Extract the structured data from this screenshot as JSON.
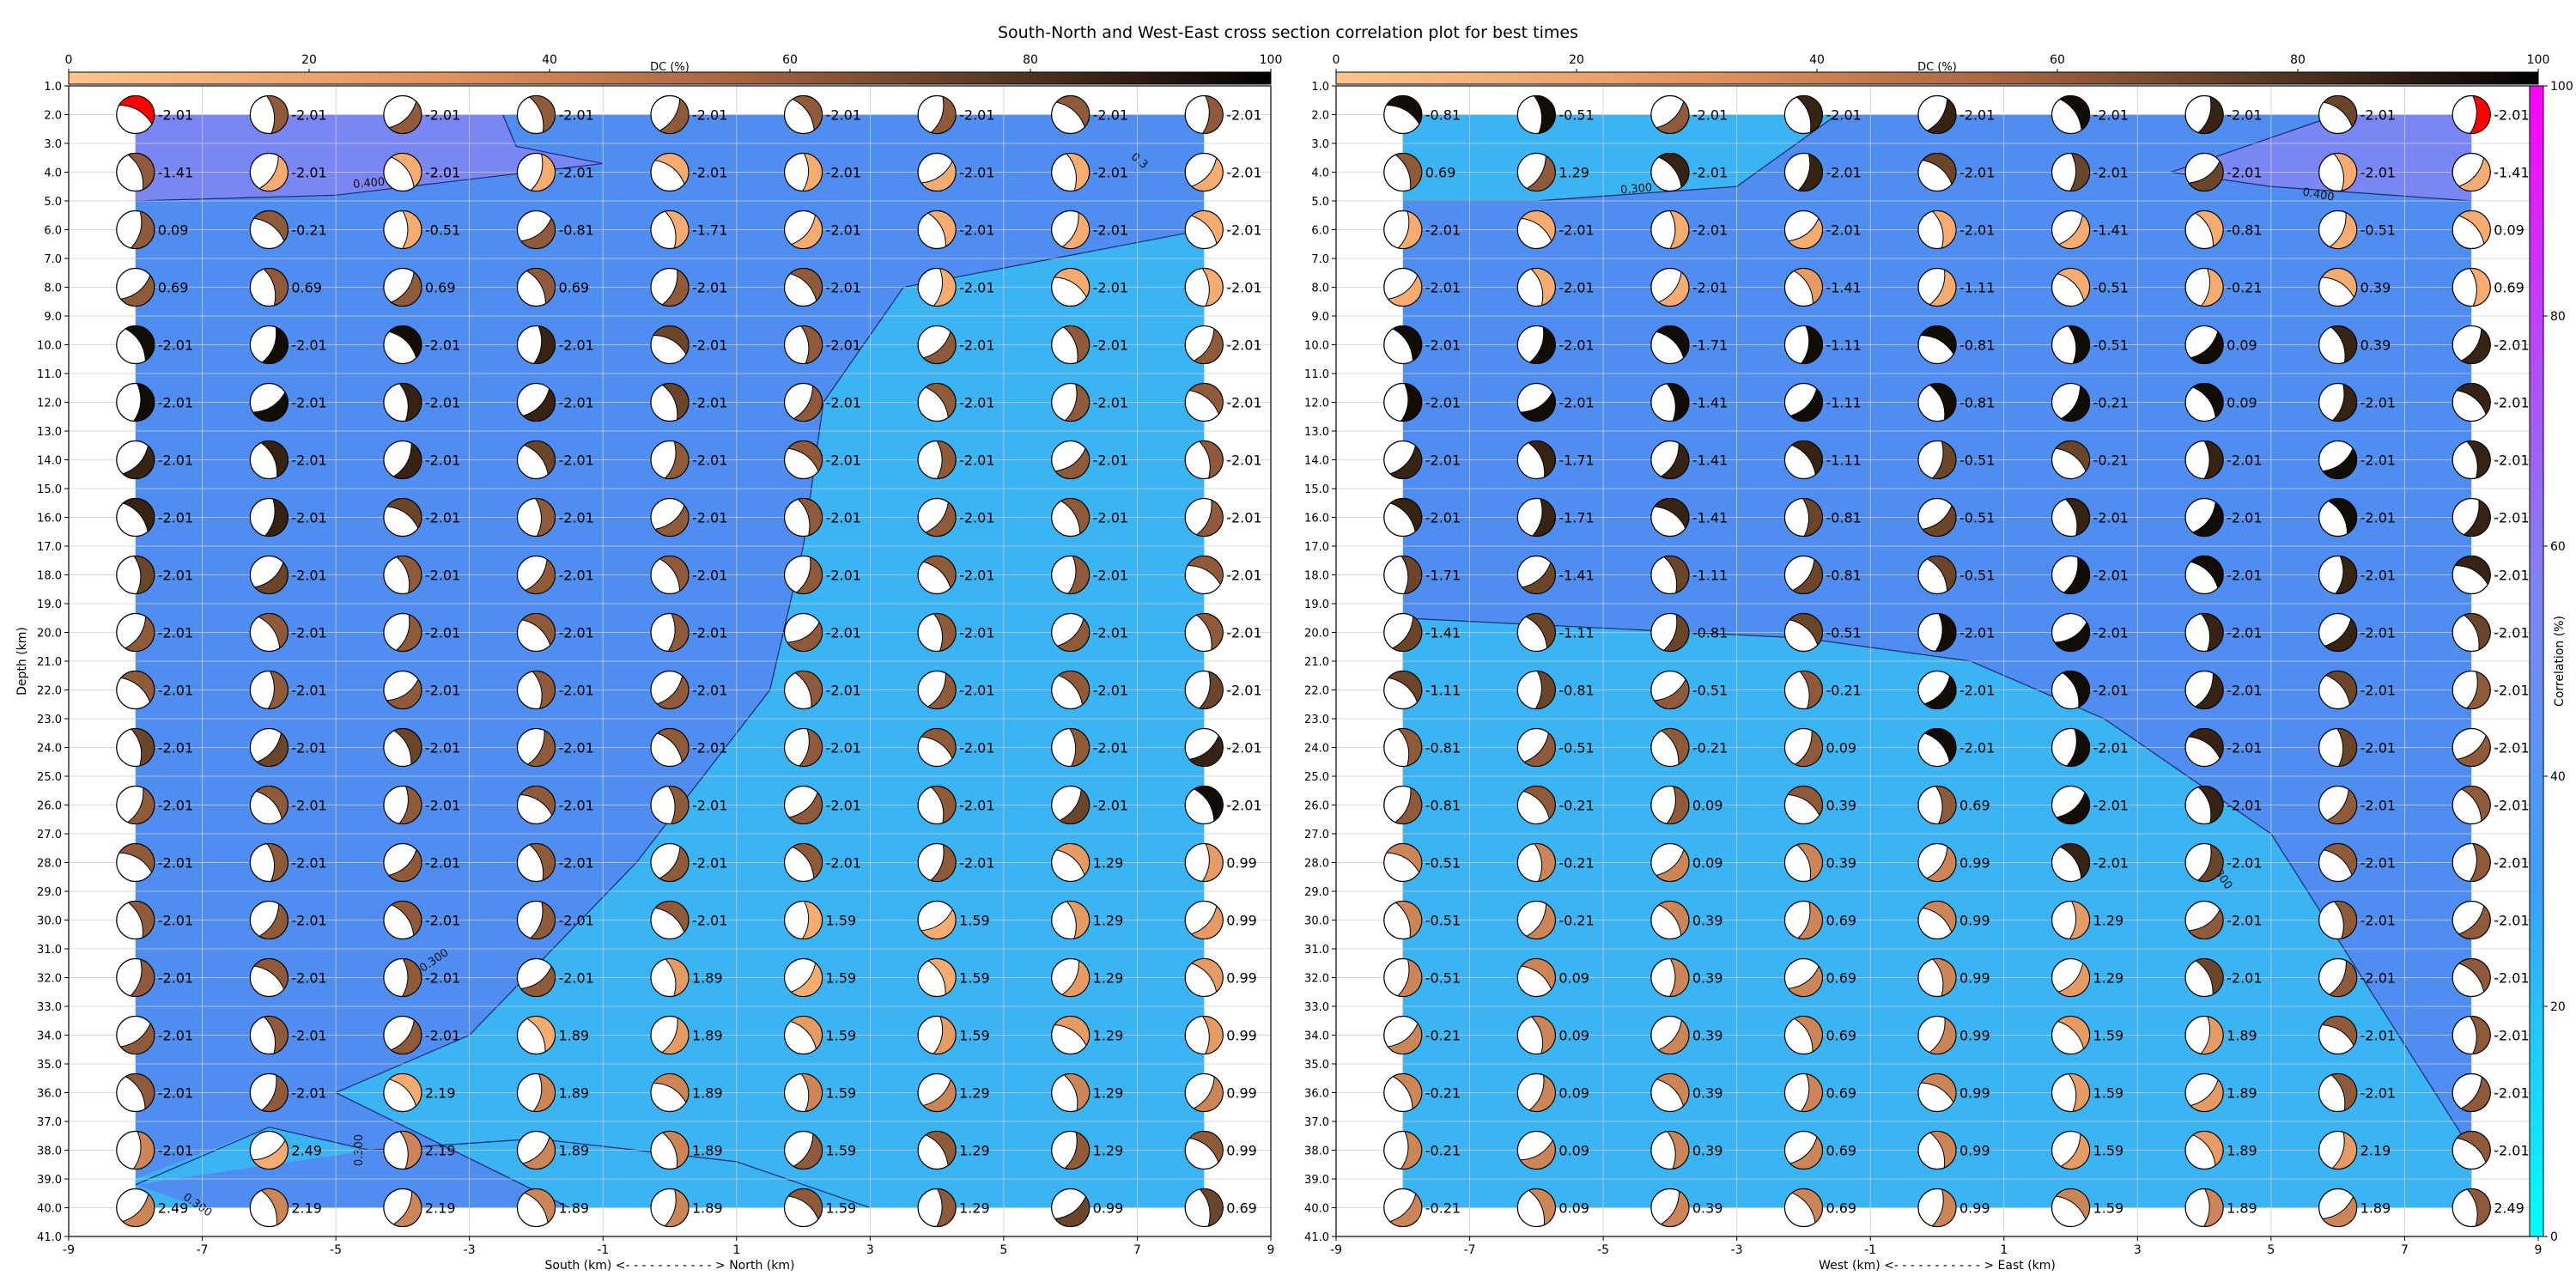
{
  "figure": {
    "title": "South-North and West-East cross section correlation plot for best times"
  },
  "colorbars": {
    "dc": {
      "label": "DC (%)",
      "ticks": [
        "0",
        "20",
        "40",
        "60",
        "80",
        "100"
      ],
      "colors": [
        "#fcc58d",
        "#f4a46a",
        "#b0704a",
        "#5a3a22",
        "#000000"
      ]
    },
    "correlation": {
      "label": "Correlation (%)",
      "ticks": [
        "0",
        "20",
        "40",
        "60",
        "80",
        "100"
      ],
      "colors": [
        "#00ffff",
        "#3aa0ff",
        "#8080ff",
        "#c040ff",
        "#ff00ff"
      ]
    }
  },
  "colors": {
    "region_low": "#3ab4f2",
    "region_mid": "#4f8ef0",
    "region_high": "#7b86f5",
    "contour": "#1b2a6e",
    "beachball_best": "#ff0000",
    "grid": "#cccccc"
  },
  "chart_data": [
    {
      "type": "scatter",
      "panel": "South-North",
      "xlabel": "South (km) <- - - - - - - - - - - > North (km)",
      "ylabel": "Depth (km)",
      "xlim": [
        -9,
        9
      ],
      "ylim": [
        41,
        1
      ],
      "x_ticks": [
        "-9",
        "-7",
        "-5",
        "-3",
        "-1",
        "1",
        "3",
        "5",
        "7",
        "9"
      ],
      "y_ticks": [
        "1.0",
        "2.0",
        "3.0",
        "4.0",
        "5.0",
        "6.0",
        "7.0",
        "8.0",
        "9.0",
        "10.0",
        "11.0",
        "12.0",
        "13.0",
        "14.0",
        "15.0",
        "16.0",
        "17.0",
        "18.0",
        "19.0",
        "20.0",
        "21.0",
        "22.0",
        "23.0",
        "24.0",
        "25.0",
        "26.0",
        "27.0",
        "28.0",
        "29.0",
        "30.0",
        "31.0",
        "32.0",
        "33.0",
        "34.0",
        "35.0",
        "36.0",
        "37.0",
        "38.0",
        "39.0",
        "40.0",
        "41.0"
      ],
      "x": [
        -8,
        -6,
        -4,
        -2,
        0,
        2,
        4,
        6,
        8
      ],
      "depths": [
        2,
        4,
        6,
        8,
        10,
        12,
        14,
        16,
        18,
        20,
        22,
        24,
        26,
        28,
        30,
        32,
        34,
        36,
        38,
        40
      ],
      "labels": [
        [
          "-2.01",
          "-2.01",
          "-2.01",
          "-2.01",
          "-2.01",
          "-2.01",
          "-2.01",
          "-2.01",
          "-2.01"
        ],
        [
          "-1.41",
          "-2.01",
          "-2.01",
          "-2.01",
          "-2.01",
          "-2.01",
          "-2.01",
          "-2.01",
          "-2.01"
        ],
        [
          "0.09",
          "-0.21",
          "-0.51",
          "-0.81",
          "-1.71",
          "-2.01",
          "-2.01",
          "-2.01",
          "-2.01"
        ],
        [
          "0.69",
          "0.69",
          "0.69",
          "0.69",
          "-2.01",
          "-2.01",
          "-2.01",
          "-2.01",
          "-2.01"
        ],
        [
          "-2.01",
          "-2.01",
          "-2.01",
          "-2.01",
          "-2.01",
          "-2.01",
          "-2.01",
          "-2.01",
          "-2.01"
        ],
        [
          "-2.01",
          "-2.01",
          "-2.01",
          "-2.01",
          "-2.01",
          "-2.01",
          "-2.01",
          "-2.01",
          "-2.01"
        ],
        [
          "-2.01",
          "-2.01",
          "-2.01",
          "-2.01",
          "-2.01",
          "-2.01",
          "-2.01",
          "-2.01",
          "-2.01"
        ],
        [
          "-2.01",
          "-2.01",
          "-2.01",
          "-2.01",
          "-2.01",
          "-2.01",
          "-2.01",
          "-2.01",
          "-2.01"
        ],
        [
          "-2.01",
          "-2.01",
          "-2.01",
          "-2.01",
          "-2.01",
          "-2.01",
          "-2.01",
          "-2.01",
          "-2.01"
        ],
        [
          "-2.01",
          "-2.01",
          "-2.01",
          "-2.01",
          "-2.01",
          "-2.01",
          "-2.01",
          "-2.01",
          "-2.01"
        ],
        [
          "-2.01",
          "-2.01",
          "-2.01",
          "-2.01",
          "-2.01",
          "-2.01",
          "-2.01",
          "-2.01",
          "-2.01"
        ],
        [
          "-2.01",
          "-2.01",
          "-2.01",
          "-2.01",
          "-2.01",
          "-2.01",
          "-2.01",
          "-2.01",
          "-2.01"
        ],
        [
          "-2.01",
          "-2.01",
          "-2.01",
          "-2.01",
          "-2.01",
          "-2.01",
          "-2.01",
          "-2.01",
          "-2.01"
        ],
        [
          "-2.01",
          "-2.01",
          "-2.01",
          "-2.01",
          "-2.01",
          "-2.01",
          "-2.01",
          "1.29",
          "0.99"
        ],
        [
          "-2.01",
          "-2.01",
          "-2.01",
          "-2.01",
          "-2.01",
          "1.59",
          "1.59",
          "1.29",
          "0.99"
        ],
        [
          "-2.01",
          "-2.01",
          "-2.01",
          "-2.01",
          "1.89",
          "1.59",
          "1.59",
          "1.29",
          "0.99"
        ],
        [
          "-2.01",
          "-2.01",
          "-2.01",
          "1.89",
          "1.89",
          "1.59",
          "1.59",
          "1.29",
          "0.99"
        ],
        [
          "-2.01",
          "-2.01",
          "2.19",
          "1.89",
          "1.89",
          "1.59",
          "1.29",
          "1.29",
          "0.99"
        ],
        [
          "-2.01",
          "2.49",
          "2.19",
          "1.89",
          "1.89",
          "1.59",
          "1.29",
          "1.29",
          "0.99"
        ],
        [
          "2.49",
          "2.19",
          "2.19",
          "1.89",
          "1.89",
          "1.59",
          "1.29",
          "0.99",
          "0.69"
        ]
      ],
      "dc_percent": [
        [
          60,
          60,
          60,
          60,
          60,
          60,
          60,
          60,
          60
        ],
        [
          60,
          20,
          20,
          20,
          20,
          20,
          20,
          20,
          20
        ],
        [
          60,
          60,
          20,
          60,
          20,
          20,
          20,
          20,
          20
        ],
        [
          60,
          60,
          60,
          60,
          60,
          60,
          20,
          20,
          20
        ],
        [
          95,
          95,
          95,
          85,
          70,
          60,
          60,
          60,
          60
        ],
        [
          95,
          95,
          85,
          85,
          70,
          60,
          60,
          60,
          60
        ],
        [
          85,
          85,
          85,
          70,
          60,
          60,
          60,
          60,
          60
        ],
        [
          85,
          85,
          70,
          60,
          60,
          60,
          60,
          60,
          60
        ],
        [
          70,
          70,
          60,
          60,
          60,
          60,
          60,
          60,
          60
        ],
        [
          60,
          60,
          60,
          60,
          60,
          60,
          60,
          60,
          60
        ],
        [
          60,
          60,
          60,
          60,
          60,
          60,
          60,
          60,
          70
        ],
        [
          70,
          70,
          70,
          60,
          60,
          60,
          60,
          60,
          85
        ],
        [
          60,
          60,
          60,
          60,
          60,
          60,
          60,
          70,
          95
        ],
        [
          60,
          60,
          60,
          60,
          60,
          60,
          60,
          30,
          30
        ],
        [
          60,
          60,
          60,
          60,
          60,
          20,
          20,
          30,
          30
        ],
        [
          60,
          60,
          60,
          60,
          30,
          20,
          20,
          30,
          30
        ],
        [
          60,
          60,
          60,
          20,
          30,
          30,
          30,
          30,
          30
        ],
        [
          60,
          60,
          20,
          40,
          40,
          40,
          40,
          40,
          40
        ],
        [
          40,
          20,
          40,
          40,
          40,
          60,
          60,
          60,
          60
        ],
        [
          40,
          40,
          40,
          40,
          40,
          60,
          60,
          70,
          70
        ]
      ],
      "best": [
        [
          0,
          0
        ]
      ],
      "region_boundary_x": [
        -1.5,
        -0.2,
        0.7,
        2.0,
        4.5,
        9
      ],
      "contours": [
        "0.300",
        "0.400",
        "0.300",
        "0.300",
        "0.300",
        "0.3"
      ]
    },
    {
      "type": "scatter",
      "panel": "West-East",
      "xlabel": "West (km) <- - - - - - - - - - - > East (km)",
      "ylabel": "",
      "xlim": [
        -9,
        9
      ],
      "ylim": [
        41,
        1
      ],
      "x_ticks": [
        "-9",
        "-7",
        "-5",
        "-3",
        "-1",
        "1",
        "3",
        "5",
        "7",
        "9"
      ],
      "x": [
        -8,
        -6,
        -4,
        -2,
        0,
        2,
        4,
        6,
        8
      ],
      "depths": [
        2,
        4,
        6,
        8,
        10,
        12,
        14,
        16,
        18,
        20,
        22,
        24,
        26,
        28,
        30,
        32,
        34,
        36,
        38,
        40
      ],
      "labels": [
        [
          "-0.81",
          "-0.51",
          "-2.01",
          "-2.01",
          "-2.01",
          "-2.01",
          "-2.01",
          "-2.01",
          "-2.01"
        ],
        [
          "0.69",
          "1.29",
          "-2.01",
          "-2.01",
          "-2.01",
          "-2.01",
          "-2.01",
          "-2.01",
          "-1.41"
        ],
        [
          "-2.01",
          "-2.01",
          "-2.01",
          "-2.01",
          "-2.01",
          "-1.41",
          "-0.81",
          "-0.51",
          "0.09"
        ],
        [
          "-2.01",
          "-2.01",
          "-2.01",
          "-1.41",
          "-1.11",
          "-0.51",
          "-0.21",
          "0.39",
          "0.69"
        ],
        [
          "-2.01",
          "-2.01",
          "-1.71",
          "-1.11",
          "-0.81",
          "-0.51",
          "0.09",
          "0.39",
          "-2.01"
        ],
        [
          "-2.01",
          "-2.01",
          "-1.41",
          "-1.11",
          "-0.81",
          "-0.21",
          "0.09",
          "-2.01",
          "-2.01"
        ],
        [
          "-2.01",
          "-1.71",
          "-1.41",
          "-1.11",
          "-0.51",
          "-0.21",
          "-2.01",
          "-2.01",
          "-2.01"
        ],
        [
          "-2.01",
          "-1.71",
          "-1.41",
          "-0.81",
          "-0.51",
          "-2.01",
          "-2.01",
          "-2.01",
          "-2.01"
        ],
        [
          "-1.71",
          "-1.41",
          "-1.11",
          "-0.81",
          "-0.51",
          "-2.01",
          "-2.01",
          "-2.01",
          "-2.01"
        ],
        [
          "-1.41",
          "-1.11",
          "-0.81",
          "-0.51",
          "-2.01",
          "-2.01",
          "-2.01",
          "-2.01",
          "-2.01"
        ],
        [
          "-1.11",
          "-0.81",
          "-0.51",
          "-0.21",
          "-2.01",
          "-2.01",
          "-2.01",
          "-2.01",
          "-2.01"
        ],
        [
          "-0.81",
          "-0.51",
          "-0.21",
          "0.09",
          "-2.01",
          "-2.01",
          "-2.01",
          "-2.01",
          "-2.01"
        ],
        [
          "-0.81",
          "-0.21",
          "0.09",
          "0.39",
          "0.69",
          "-2.01",
          "-2.01",
          "-2.01",
          "-2.01"
        ],
        [
          "-0.51",
          "-0.21",
          "0.09",
          "0.39",
          "0.99",
          "-2.01",
          "-2.01",
          "-2.01",
          "-2.01"
        ],
        [
          "-0.51",
          "-0.21",
          "0.39",
          "0.69",
          "0.99",
          "1.29",
          "-2.01",
          "-2.01",
          "-2.01"
        ],
        [
          "-0.51",
          "0.09",
          "0.39",
          "0.69",
          "0.99",
          "1.29",
          "-2.01",
          "-2.01",
          "-2.01"
        ],
        [
          "-0.21",
          "0.09",
          "0.39",
          "0.69",
          "0.99",
          "1.59",
          "1.89",
          "-2.01",
          "-2.01"
        ],
        [
          "-0.21",
          "0.09",
          "0.39",
          "0.69",
          "0.99",
          "1.59",
          "1.89",
          "-2.01",
          "-2.01"
        ],
        [
          "-0.21",
          "0.09",
          "0.39",
          "0.69",
          "0.99",
          "1.59",
          "1.89",
          "2.19",
          "-2.01"
        ],
        [
          "-0.21",
          "0.09",
          "0.39",
          "0.69",
          "0.99",
          "1.59",
          "1.89",
          "1.89",
          "2.49"
        ]
      ],
      "dc_percent": [
        [
          95,
          95,
          60,
          85,
          85,
          95,
          85,
          70,
          60
        ],
        [
          60,
          60,
          85,
          85,
          70,
          70,
          70,
          20,
          20
        ],
        [
          20,
          20,
          20,
          20,
          20,
          20,
          20,
          20,
          20
        ],
        [
          20,
          20,
          20,
          30,
          20,
          20,
          20,
          20,
          20
        ],
        [
          95,
          95,
          95,
          95,
          95,
          95,
          95,
          85,
          85
        ],
        [
          95,
          95,
          95,
          95,
          95,
          95,
          95,
          85,
          85
        ],
        [
          85,
          85,
          85,
          85,
          70,
          70,
          85,
          95,
          85
        ],
        [
          85,
          85,
          85,
          70,
          70,
          85,
          95,
          95,
          85
        ],
        [
          70,
          70,
          70,
          70,
          70,
          95,
          95,
          85,
          85
        ],
        [
          70,
          70,
          70,
          70,
          95,
          95,
          85,
          85,
          70
        ],
        [
          70,
          70,
          60,
          60,
          95,
          95,
          85,
          70,
          60
        ],
        [
          60,
          60,
          60,
          60,
          95,
          95,
          85,
          70,
          60
        ],
        [
          60,
          60,
          60,
          60,
          60,
          95,
          85,
          60,
          60
        ],
        [
          40,
          40,
          40,
          40,
          40,
          85,
          70,
          60,
          60
        ],
        [
          40,
          40,
          40,
          40,
          40,
          30,
          60,
          60,
          60
        ],
        [
          40,
          40,
          40,
          40,
          40,
          30,
          70,
          60,
          60
        ],
        [
          40,
          40,
          40,
          40,
          40,
          30,
          30,
          60,
          60
        ],
        [
          40,
          40,
          40,
          40,
          40,
          30,
          30,
          60,
          60
        ],
        [
          40,
          40,
          40,
          40,
          40,
          30,
          30,
          30,
          60
        ],
        [
          40,
          40,
          40,
          40,
          40,
          40,
          40,
          40,
          60
        ]
      ],
      "best": [
        [
          0,
          8
        ]
      ],
      "region_boundary_x": [
        -8.5,
        -4,
        -2,
        1,
        4,
        8
      ],
      "contours": [
        "0.300",
        "0.400",
        "0.300"
      ]
    }
  ]
}
